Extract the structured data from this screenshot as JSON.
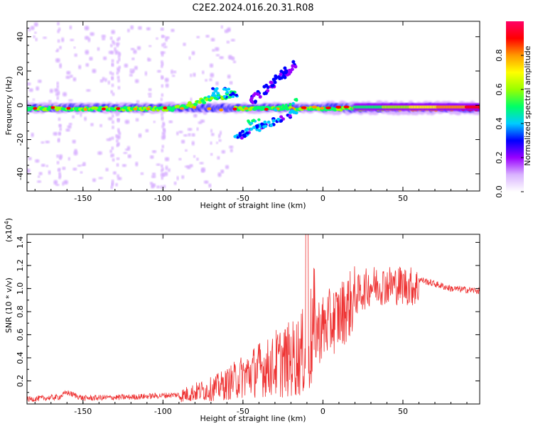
{
  "title": "C2E2.2024.016.20.31.R08",
  "chart_data": [
    {
      "type": "heatmap",
      "xlabel": "Height of straight line (km)",
      "ylabel": "Frequency (Hz)",
      "xlim": [
        -185,
        98
      ],
      "ylim": [
        -50,
        49
      ],
      "x_ticks": [
        -150,
        -100,
        -50,
        0,
        50
      ],
      "x_tick_labels": [
        "-150",
        "-100",
        "-50",
        "0",
        "50"
      ],
      "y_ticks": [
        -40,
        -20,
        0,
        20,
        40
      ],
      "y_tick_labels": [
        "-40",
        "-20",
        "0",
        "20",
        "40"
      ],
      "description_features": [
        {
          "name": "main-band",
          "x_range": [
            -185,
            98
          ],
          "center_hz": -2,
          "peak_amplitude": 0.9
        },
        {
          "name": "upper-branch",
          "x_range": [
            -45,
            -18
          ],
          "freq_range": [
            5,
            25
          ]
        },
        {
          "name": "lower-branch",
          "x_range": [
            -55,
            -15
          ],
          "freq_range": [
            -20,
            -5
          ]
        }
      ],
      "colorbar": {
        "label": "Normalized spectral amplitude",
        "range": [
          0,
          1
        ],
        "ticks": [
          0.0,
          0.2,
          0.4,
          0.6,
          0.8
        ],
        "tick_labels": [
          "0.0",
          "0.2",
          "0.4",
          "0.6",
          "0.8"
        ],
        "colors": [
          "#ffffff",
          "#d9b3ff",
          "#9900ff",
          "#0000ff",
          "#00ccff",
          "#00ff66",
          "#99ff00",
          "#ffff00",
          "#ff9900",
          "#ff0000",
          "#ff0066"
        ]
      }
    },
    {
      "type": "line",
      "xlabel": "Height of straight line (km)",
      "ylabel": "SNR (10 * v/v)",
      "y_scale_label": "(x10",
      "y_scale_exp": "4",
      "y_scale_close": ")",
      "xlim": [
        -185,
        98
      ],
      "ylim": [
        0,
        1.47
      ],
      "x_ticks": [
        -150,
        -100,
        -50,
        0,
        50
      ],
      "x_tick_labels": [
        "-150",
        "-100",
        "-50",
        "0",
        "50"
      ],
      "y_ticks": [
        0.2,
        0.4,
        0.6,
        0.8,
        1.0,
        1.2,
        1.4
      ],
      "y_tick_labels": [
        "0.2",
        "0.4",
        "0.6",
        "0.8",
        "1.0",
        "1.2",
        "1.4"
      ],
      "color": "#ee3333",
      "envelope": {
        "x": [
          -185,
          -165,
          -160,
          -150,
          -120,
          -90,
          -80,
          -70,
          -60,
          -50,
          -40,
          -30,
          -20,
          -10,
          -5,
          0,
          10,
          20,
          30,
          50,
          60,
          80,
          98
        ],
        "y": [
          0.04,
          0.06,
          0.1,
          0.05,
          0.06,
          0.08,
          0.12,
          0.15,
          0.2,
          0.28,
          0.35,
          0.38,
          0.42,
          0.5,
          0.72,
          0.75,
          0.85,
          1.0,
          1.1,
          1.1,
          1.08,
          1.0,
          0.98
        ]
      }
    }
  ]
}
